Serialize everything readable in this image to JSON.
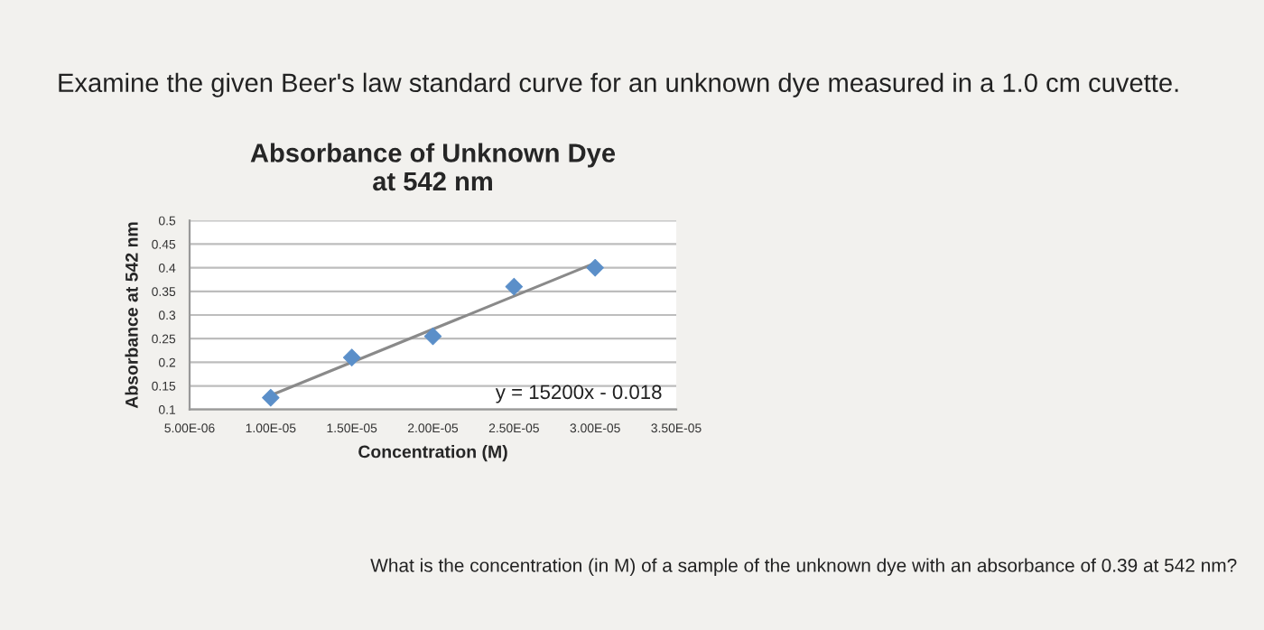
{
  "chart_data": {
    "type": "scatter",
    "title": "Absorbance of Unknown Dye\nat 542 nm",
    "xlabel": "Concentration (M)",
    "ylabel": "Absorbance at 542 nm",
    "x": [
      1e-05,
      1.5e-05,
      2e-05,
      2.5e-05,
      3e-05
    ],
    "series": [
      {
        "color": "#5b8fc9",
        "marker": "diamond",
        "values": [
          0.125,
          0.21,
          0.255,
          0.36,
          0.4
        ]
      },
      {
        "type": "line",
        "color": "#8a8a8a",
        "marker": "none",
        "line_style": "solid",
        "x": [
          1e-05,
          3e-05
        ],
        "values": [
          0.13,
          0.41
        ]
      }
    ],
    "xlim": [
      5e-06,
      3.5e-05
    ],
    "xticks": [
      {
        "value": 5e-06,
        "label": "5.00E-06"
      },
      {
        "value": 1e-05,
        "label": "1.00E-05"
      },
      {
        "value": 1.5e-05,
        "label": "1.50E-05"
      },
      {
        "value": 2e-05,
        "label": "2.00E-05"
      },
      {
        "value": 2.5e-05,
        "label": "2.50E-05"
      },
      {
        "value": 3e-05,
        "label": "3.00E-05"
      },
      {
        "value": 3.5e-05,
        "label": "3.50E-05"
      }
    ],
    "ylim": [
      0.1,
      0.5
    ],
    "yticks": [
      0.1,
      0.15,
      0.2,
      0.25,
      0.3,
      0.35,
      0.4,
      0.45,
      0.5
    ],
    "grid": "y",
    "legend": false,
    "annotations": [
      "Examine the given Beer's law standard curve for an unknown dye measured in a 1.0 cm cuvette.",
      "What is the concentration (in M) of a sample of the unknown dye with an absorbance of 0.39 at 542 nm?",
      "y = 15200x - 0.018"
    ]
  }
}
